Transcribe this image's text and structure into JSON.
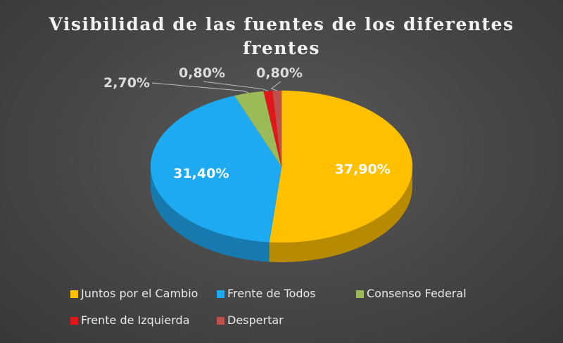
{
  "chart_data": {
    "type": "pie",
    "title": "Visibilidad de las fuentes de los diferentes frentes",
    "title_lines": [
      "Visibilidad de las fuentes de los diferentes",
      "frentes"
    ],
    "categories": [
      "Juntos por el Cambio",
      "Frente de Todos",
      "Consenso Federal",
      "Frente de Izquierda",
      "Despertar"
    ],
    "values": [
      37.9,
      31.4,
      2.7,
      0.8,
      0.8
    ],
    "data_labels": [
      "37,90%",
      "31,40%",
      "2,70%",
      "0,80%",
      "0,80%"
    ],
    "colors": [
      "#ffc000",
      "#1eaaf1",
      "#9bbb59",
      "#e0161b",
      "#c0504d"
    ],
    "legend_position": "bottom",
    "style": "3d-pie"
  }
}
